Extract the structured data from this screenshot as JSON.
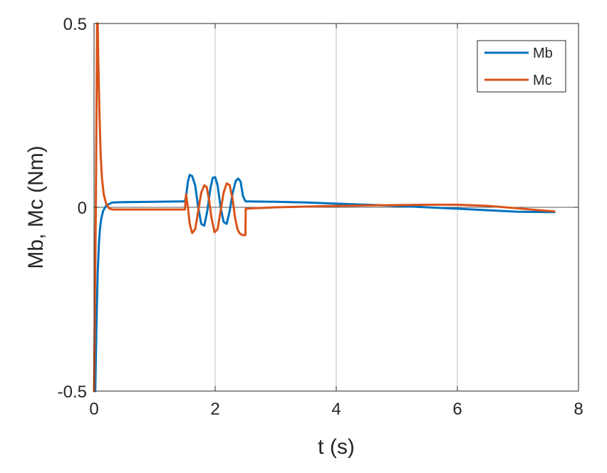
{
  "chart_data": {
    "type": "line",
    "xlabel": "t (s)",
    "ylabel": "Mb, Mc (Nm)",
    "xlim": [
      0,
      8
    ],
    "ylim": [
      -0.5,
      0.5
    ],
    "x_ticks": [
      "0",
      "2",
      "4",
      "6",
      "8"
    ],
    "x_tick_values": [
      0,
      2,
      4,
      6,
      8
    ],
    "y_ticks": [
      "-0.5",
      "0",
      "0.5"
    ],
    "y_tick_values": [
      -0.5,
      0,
      0.5
    ],
    "grid": true,
    "legend_position": "top-right",
    "series": [
      {
        "name": "Mb",
        "color": "#0072BD",
        "x": [
          0.0,
          0.02,
          0.04,
          0.06,
          0.08,
          0.1,
          0.12,
          0.15,
          0.2,
          0.3,
          0.5,
          1.0,
          1.5,
          1.52,
          1.55,
          1.58,
          1.62,
          1.67,
          1.72,
          1.77,
          1.82,
          1.87,
          1.92,
          1.96,
          2.0,
          2.04,
          2.09,
          2.14,
          2.19,
          2.24,
          2.29,
          2.34,
          2.38,
          2.42,
          2.46,
          2.49,
          2.5,
          2.52,
          2.55,
          3.0,
          3.5,
          4.0,
          4.5,
          5.0,
          5.5,
          6.0,
          6.5,
          7.0,
          7.5,
          7.6
        ],
        "y": [
          -0.5,
          -0.5,
          -0.32,
          -0.18,
          -0.1,
          -0.055,
          -0.03,
          -0.01,
          0.005,
          0.013,
          0.014,
          0.015,
          0.016,
          0.03,
          0.07,
          0.088,
          0.085,
          0.06,
          0.0,
          -0.045,
          -0.05,
          -0.01,
          0.05,
          0.08,
          0.082,
          0.06,
          0.0,
          -0.04,
          -0.045,
          -0.01,
          0.04,
          0.072,
          0.078,
          0.07,
          0.03,
          0.02,
          0.016,
          0.016,
          0.016,
          0.015,
          0.013,
          0.01,
          0.007,
          0.004,
          0.0,
          -0.004,
          -0.008,
          -0.012,
          -0.013,
          -0.013
        ]
      },
      {
        "name": "Mc",
        "color": "#D95319",
        "x": [
          0.0,
          0.03,
          0.05,
          0.06,
          0.07,
          0.09,
          0.11,
          0.13,
          0.16,
          0.2,
          0.25,
          0.3,
          0.5,
          1.0,
          1.5,
          1.52,
          1.55,
          1.58,
          1.62,
          1.67,
          1.72,
          1.77,
          1.82,
          1.86,
          1.9,
          1.94,
          1.99,
          2.04,
          2.09,
          2.14,
          2.19,
          2.24,
          2.29,
          2.33,
          2.37,
          2.4,
          2.44,
          2.48,
          2.5,
          2.505,
          2.52,
          2.6,
          3.0,
          3.5,
          4.0,
          4.5,
          5.0,
          5.5,
          6.0,
          6.5,
          7.0,
          7.5,
          7.6
        ],
        "y": [
          -0.5,
          0.0,
          0.5,
          0.5,
          0.4,
          0.25,
          0.14,
          0.08,
          0.035,
          0.01,
          -0.003,
          -0.006,
          -0.006,
          -0.006,
          -0.006,
          0.035,
          0.0,
          -0.045,
          -0.07,
          -0.06,
          -0.01,
          0.04,
          0.06,
          0.055,
          0.02,
          -0.03,
          -0.068,
          -0.06,
          -0.01,
          0.04,
          0.065,
          0.06,
          0.02,
          -0.03,
          -0.06,
          -0.07,
          -0.075,
          -0.076,
          -0.075,
          -0.004,
          -0.004,
          -0.003,
          0.0,
          0.002,
          0.004,
          0.005,
          0.006,
          0.007,
          0.007,
          0.004,
          -0.003,
          -0.01,
          -0.011
        ]
      }
    ]
  }
}
